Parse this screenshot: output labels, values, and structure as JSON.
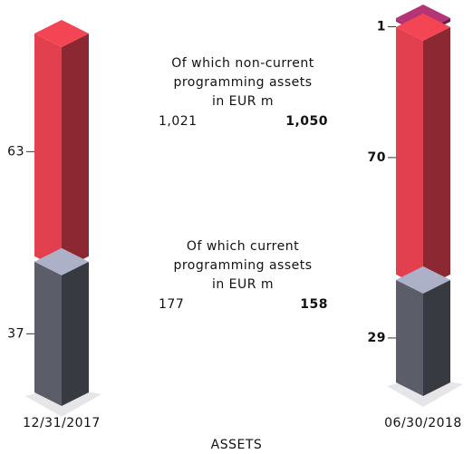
{
  "chart_data": {
    "type": "bar",
    "stacked": true,
    "title": "ASSETS",
    "categories": [
      "12/31/2017",
      "06/30/2018"
    ],
    "series": [
      {
        "color": "#5b5d69",
        "values": [
          37,
          29
        ]
      },
      {
        "color": "#e2404f",
        "values": [
          63,
          70
        ]
      },
      {
        "color": "#a8306c",
        "values": [
          null,
          1
        ]
      }
    ],
    "annotations": [
      {
        "lines": [
          "Of which non-current",
          "programming assets",
          "in EUR m"
        ],
        "values": [
          1021,
          1050
        ],
        "value_labels": [
          "1,021",
          "1,050"
        ]
      },
      {
        "lines": [
          "Of which current",
          "programming assets",
          "in EUR m"
        ],
        "values": [
          177,
          158
        ]
      }
    ]
  }
}
